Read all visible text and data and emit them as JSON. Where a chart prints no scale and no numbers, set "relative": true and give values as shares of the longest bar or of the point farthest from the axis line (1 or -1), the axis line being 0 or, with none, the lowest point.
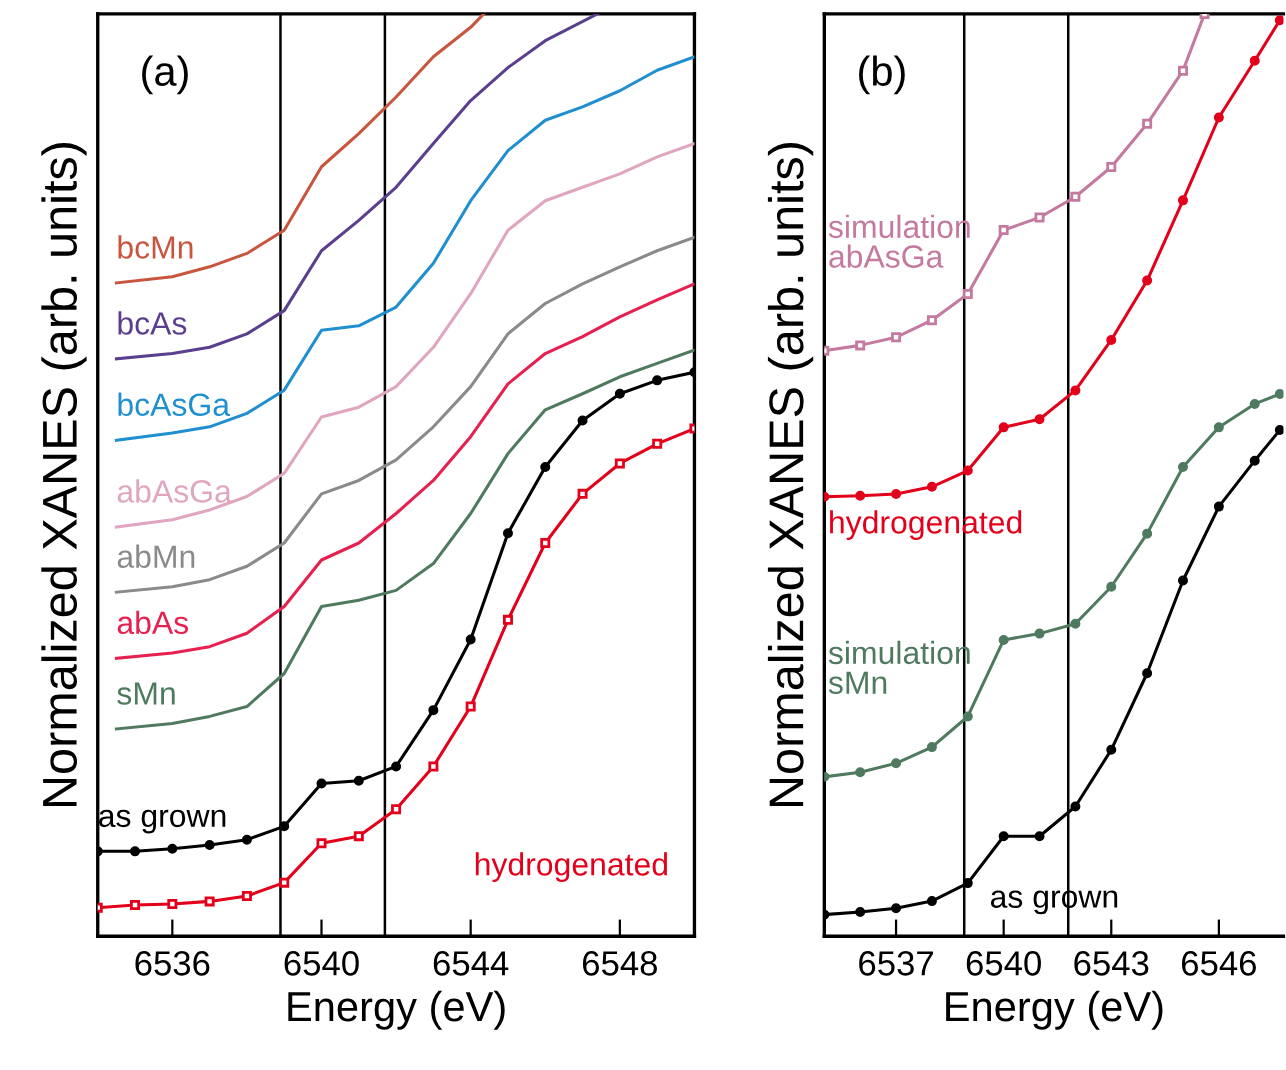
{
  "chart_data": [
    {
      "type": "line",
      "title": "(a)",
      "xlabel": "Energy (eV)",
      "ylabel": "Normalized XANES (arb. units)",
      "relative": true,
      "xlim": [
        6534,
        6550
      ],
      "xticks": [
        6536,
        6540,
        6544,
        6548
      ],
      "tick_labels": "x",
      "grid": false,
      "legend": false,
      "line_style": "solid",
      "ref_lines": [
        {
          "axis": "x",
          "value": 6538.9,
          "color": "#000000"
        },
        {
          "axis": "x",
          "value": 6541.7,
          "color": "#000000"
        }
      ],
      "series": [
        {
          "name": "bcMn",
          "color": "#c8553d",
          "marker": "none",
          "x": [
            6534.5,
            6536,
            6537,
            6538,
            6539,
            6540,
            6541,
            6542,
            6543,
            6544,
            6544.35
          ],
          "values": [
            0.699,
            0.706,
            0.717,
            0.732,
            0.758,
            0.829,
            0.866,
            0.907,
            0.952,
            0.985,
            1.0
          ]
        },
        {
          "name": "bcAs",
          "color": "#5b3f8f",
          "marker": "none",
          "x": [
            6534.5,
            6536,
            6537,
            6538,
            6539,
            6540,
            6541,
            6542,
            6543,
            6544,
            6545,
            6546,
            6547.4
          ],
          "values": [
            0.614,
            0.62,
            0.627,
            0.642,
            0.668,
            0.735,
            0.769,
            0.806,
            0.855,
            0.903,
            0.94,
            0.97,
            1.0
          ]
        },
        {
          "name": "bcAsGa",
          "color": "#1f8fcf",
          "marker": "none",
          "x": [
            6534.5,
            6536,
            6537,
            6538,
            6539,
            6540,
            6541,
            6542,
            6543,
            6544,
            6545,
            6546,
            6547,
            6548,
            6549,
            6550
          ],
          "values": [
            0.523,
            0.531,
            0.538,
            0.553,
            0.579,
            0.646,
            0.651,
            0.672,
            0.721,
            0.791,
            0.847,
            0.881,
            0.896,
            0.914,
            0.937,
            0.952
          ]
        },
        {
          "name": "abAsGa",
          "color": "#e0a6c0",
          "marker": "none",
          "x": [
            6534.5,
            6536,
            6537,
            6538,
            6539,
            6540,
            6541,
            6542,
            6543,
            6544,
            6545,
            6546,
            6547,
            6548,
            6549,
            6550
          ],
          "values": [
            0.426,
            0.434,
            0.445,
            0.46,
            0.486,
            0.549,
            0.56,
            0.583,
            0.627,
            0.687,
            0.758,
            0.791,
            0.806,
            0.821,
            0.84,
            0.855
          ]
        },
        {
          "name": "abMn",
          "color": "#8a8a8a",
          "marker": "none",
          "x": [
            6534.5,
            6536,
            6537,
            6538,
            6539,
            6540,
            6541,
            6542,
            6543,
            6544,
            6545,
            6546,
            6547,
            6548,
            6549,
            6550
          ],
          "values": [
            0.353,
            0.359,
            0.367,
            0.382,
            0.408,
            0.463,
            0.478,
            0.501,
            0.538,
            0.583,
            0.642,
            0.676,
            0.698,
            0.717,
            0.735,
            0.75
          ]
        },
        {
          "name": "abAs",
          "color": "#e6204f",
          "marker": "none",
          "x": [
            6534.5,
            6536,
            6537,
            6538,
            6539,
            6540,
            6541,
            6542,
            6543,
            6544,
            6545,
            6546,
            6547,
            6548,
            6549,
            6550
          ],
          "values": [
            0.279,
            0.285,
            0.292,
            0.307,
            0.337,
            0.389,
            0.408,
            0.441,
            0.478,
            0.527,
            0.586,
            0.62,
            0.639,
            0.661,
            0.68,
            0.698
          ]
        },
        {
          "name": "sMn",
          "color": "#4f7a5f",
          "marker": "none",
          "x": [
            6534.5,
            6536,
            6537,
            6538,
            6539,
            6540,
            6541,
            6542,
            6543,
            6544,
            6545,
            6546,
            6547,
            6548,
            6549,
            6550
          ],
          "values": [
            0.2,
            0.206,
            0.214,
            0.225,
            0.262,
            0.337,
            0.344,
            0.355,
            0.385,
            0.441,
            0.508,
            0.557,
            0.575,
            0.594,
            0.609,
            0.624
          ]
        },
        {
          "name": "as grown",
          "color": "#000000",
          "marker": "circle",
          "x": [
            6534,
            6535,
            6536,
            6537,
            6538,
            6539,
            6540,
            6541,
            6542,
            6543,
            6544,
            6545,
            6546,
            6547,
            6548,
            6549,
            6550
          ],
          "values": [
            0.063,
            0.063,
            0.066,
            0.07,
            0.076,
            0.091,
            0.139,
            0.142,
            0.158,
            0.221,
            0.3,
            0.419,
            0.493,
            0.545,
            0.575,
            0.59,
            0.599
          ]
        },
        {
          "name": "hydrogenated",
          "color": "#e3001b",
          "marker": "square",
          "x": [
            6534,
            6535,
            6536,
            6537,
            6538,
            6539,
            6540,
            6541,
            6542,
            6543,
            6544,
            6545,
            6546,
            6547,
            6548,
            6549,
            6550
          ],
          "values": [
            0.0,
            0.003,
            0.004,
            0.007,
            0.013,
            0.028,
            0.072,
            0.08,
            0.11,
            0.158,
            0.225,
            0.322,
            0.408,
            0.463,
            0.497,
            0.519,
            0.536
          ]
        }
      ]
    },
    {
      "type": "line",
      "title": "(b)",
      "xlabel": "Energy (eV)",
      "ylabel": "Normalized XANES (arb. units)",
      "relative": true,
      "xlim": [
        6535,
        6547.8
      ],
      "xticks": [
        6537,
        6540,
        6543,
        6546
      ],
      "tick_labels": "x",
      "grid": false,
      "legend": false,
      "line_style": "solid",
      "ref_lines": [
        {
          "axis": "x",
          "value": 6538.9,
          "color": "#000000"
        },
        {
          "axis": "x",
          "value": 6541.8,
          "color": "#000000"
        }
      ],
      "series": [
        {
          "name": "simulation\nabAsGa",
          "color": "#c47a9e",
          "marker": "square",
          "x": [
            6535,
            6536,
            6537,
            6538,
            6539,
            6540,
            6541,
            6542,
            6543,
            6544,
            6545,
            6545.6
          ],
          "values": [
            0.626,
            0.632,
            0.641,
            0.66,
            0.689,
            0.76,
            0.774,
            0.797,
            0.83,
            0.878,
            0.937,
            1.0
          ]
        },
        {
          "name": "hydrogenated",
          "color": "#e3001b",
          "marker": "circle",
          "x": [
            6535,
            6536,
            6537,
            6538,
            6539,
            6540,
            6541,
            6542,
            6543,
            6544,
            6545,
            6546,
            6547,
            6547.7
          ],
          "values": [
            0.464,
            0.465,
            0.467,
            0.475,
            0.493,
            0.541,
            0.55,
            0.582,
            0.638,
            0.704,
            0.793,
            0.885,
            0.948,
            0.993
          ]
        },
        {
          "name": "simulation\nsMn",
          "color": "#4f7a5f",
          "marker": "circle",
          "x": [
            6535,
            6536,
            6537,
            6538,
            6539,
            6540,
            6541,
            6542,
            6543,
            6544,
            6545,
            6546,
            6547,
            6547.7
          ],
          "values": [
            0.153,
            0.158,
            0.168,
            0.186,
            0.22,
            0.305,
            0.312,
            0.323,
            0.364,
            0.423,
            0.497,
            0.541,
            0.567,
            0.578
          ]
        },
        {
          "name": "as grown",
          "color": "#000000",
          "marker": "circle",
          "x": [
            6535,
            6536,
            6537,
            6538,
            6539,
            6540,
            6541,
            6542,
            6543,
            6544,
            6545,
            6546,
            6547,
            6547.7
          ],
          "values": [
            0.0,
            0.003,
            0.007,
            0.015,
            0.035,
            0.087,
            0.087,
            0.12,
            0.183,
            0.268,
            0.371,
            0.453,
            0.504,
            0.538
          ]
        }
      ]
    }
  ]
}
